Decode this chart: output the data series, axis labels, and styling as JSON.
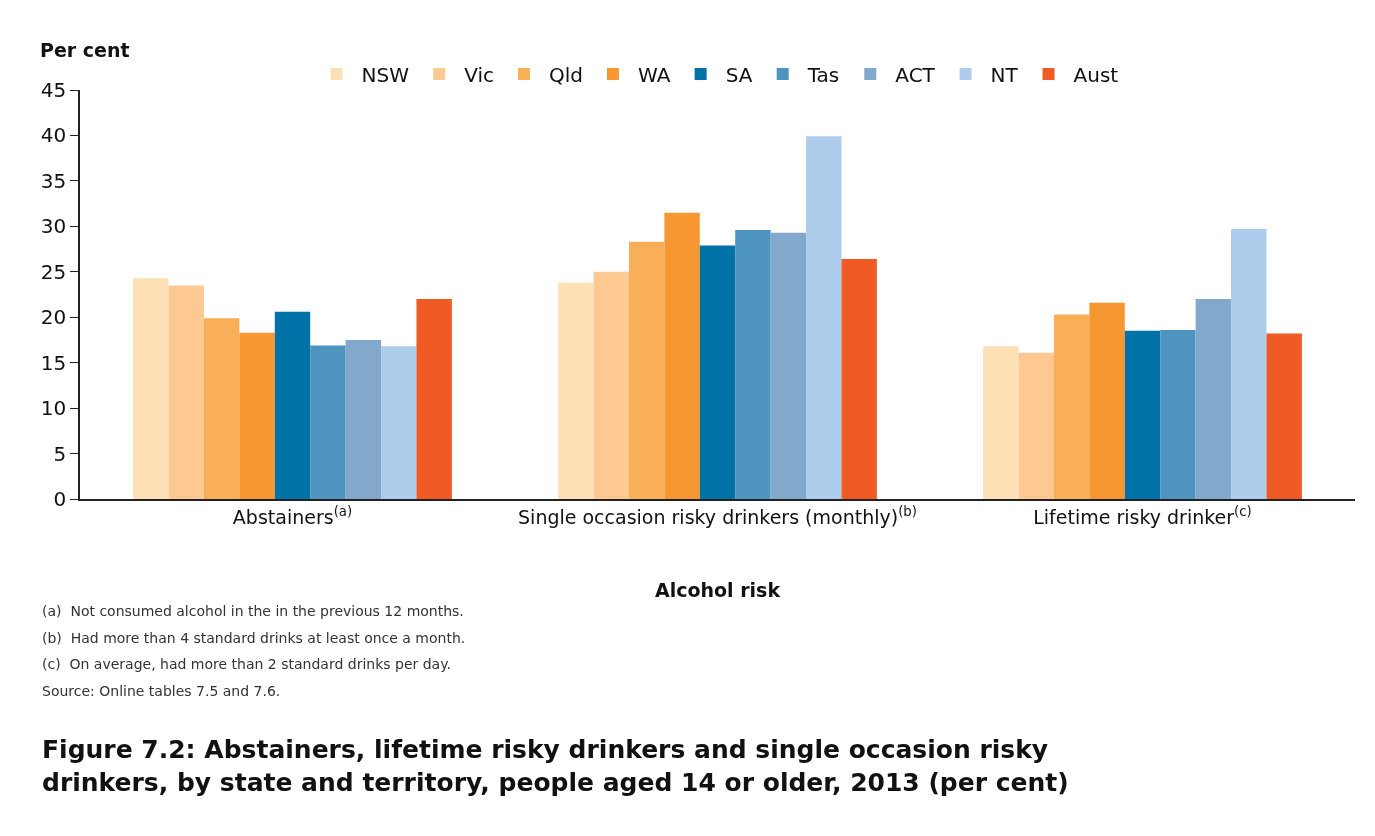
{
  "chart_data": {
    "type": "bar",
    "title": "Figure 7.2: Abstainers, lifetime risky drinkers and single occasion risky drinkers, by state and territory, people aged 14 or older, 2013 (per cent)",
    "xlabel": "Alcohol risk",
    "ylabel": "Per cent",
    "categories": [
      "Abstainers$^{(a)}$",
      "Single occasion risky drinkers (monthly)$^{(b)}$",
      "Lifetime risky drinker$^{(c)}$"
    ],
    "series": [
      {
        "name": "NSW",
        "color": "#fde0b6",
        "values": [
          24.3,
          23.8,
          16.8
        ]
      },
      {
        "name": "Vic",
        "color": "#fec893",
        "values": [
          23.5,
          25.0,
          16.1
        ]
      },
      {
        "name": "Qld",
        "color": "#f9ae58",
        "values": [
          19.9,
          28.3,
          20.3
        ]
      },
      {
        "name": "WA",
        "color": "#f69731",
        "values": [
          18.3,
          31.5,
          21.6
        ]
      },
      {
        "name": "SA",
        "color": "#0072a8",
        "values": [
          20.6,
          27.9,
          18.5
        ]
      },
      {
        "name": "Tas",
        "color": "#4d94c1",
        "values": [
          16.9,
          29.6,
          18.6
        ]
      },
      {
        "name": "ACT",
        "color": "#82a8cb",
        "values": [
          17.5,
          29.3,
          22.0
        ]
      },
      {
        "name": "NT",
        "color": "#aecdec",
        "values": [
          16.8,
          39.9,
          29.7
        ]
      },
      {
        "name": "Aust",
        "color": "#f05a24",
        "values": [
          22.0,
          26.4,
          18.2
        ]
      }
    ],
    "ylim": [
      0,
      45
    ],
    "yticks": [
      0,
      5,
      10,
      15,
      20,
      25,
      30,
      35,
      40,
      45
    ],
    "grid": false,
    "legend": "top",
    "annotations": [
      "(a)  Not consumed alcohol in the in the previous 12 months.",
      "(b)  Had more than 4 standard drinks at least once a month.",
      "(c)  On average, had more than 2 standard drinks per day.",
      "Source: Online tables 7.5 and 7.6."
    ]
  }
}
